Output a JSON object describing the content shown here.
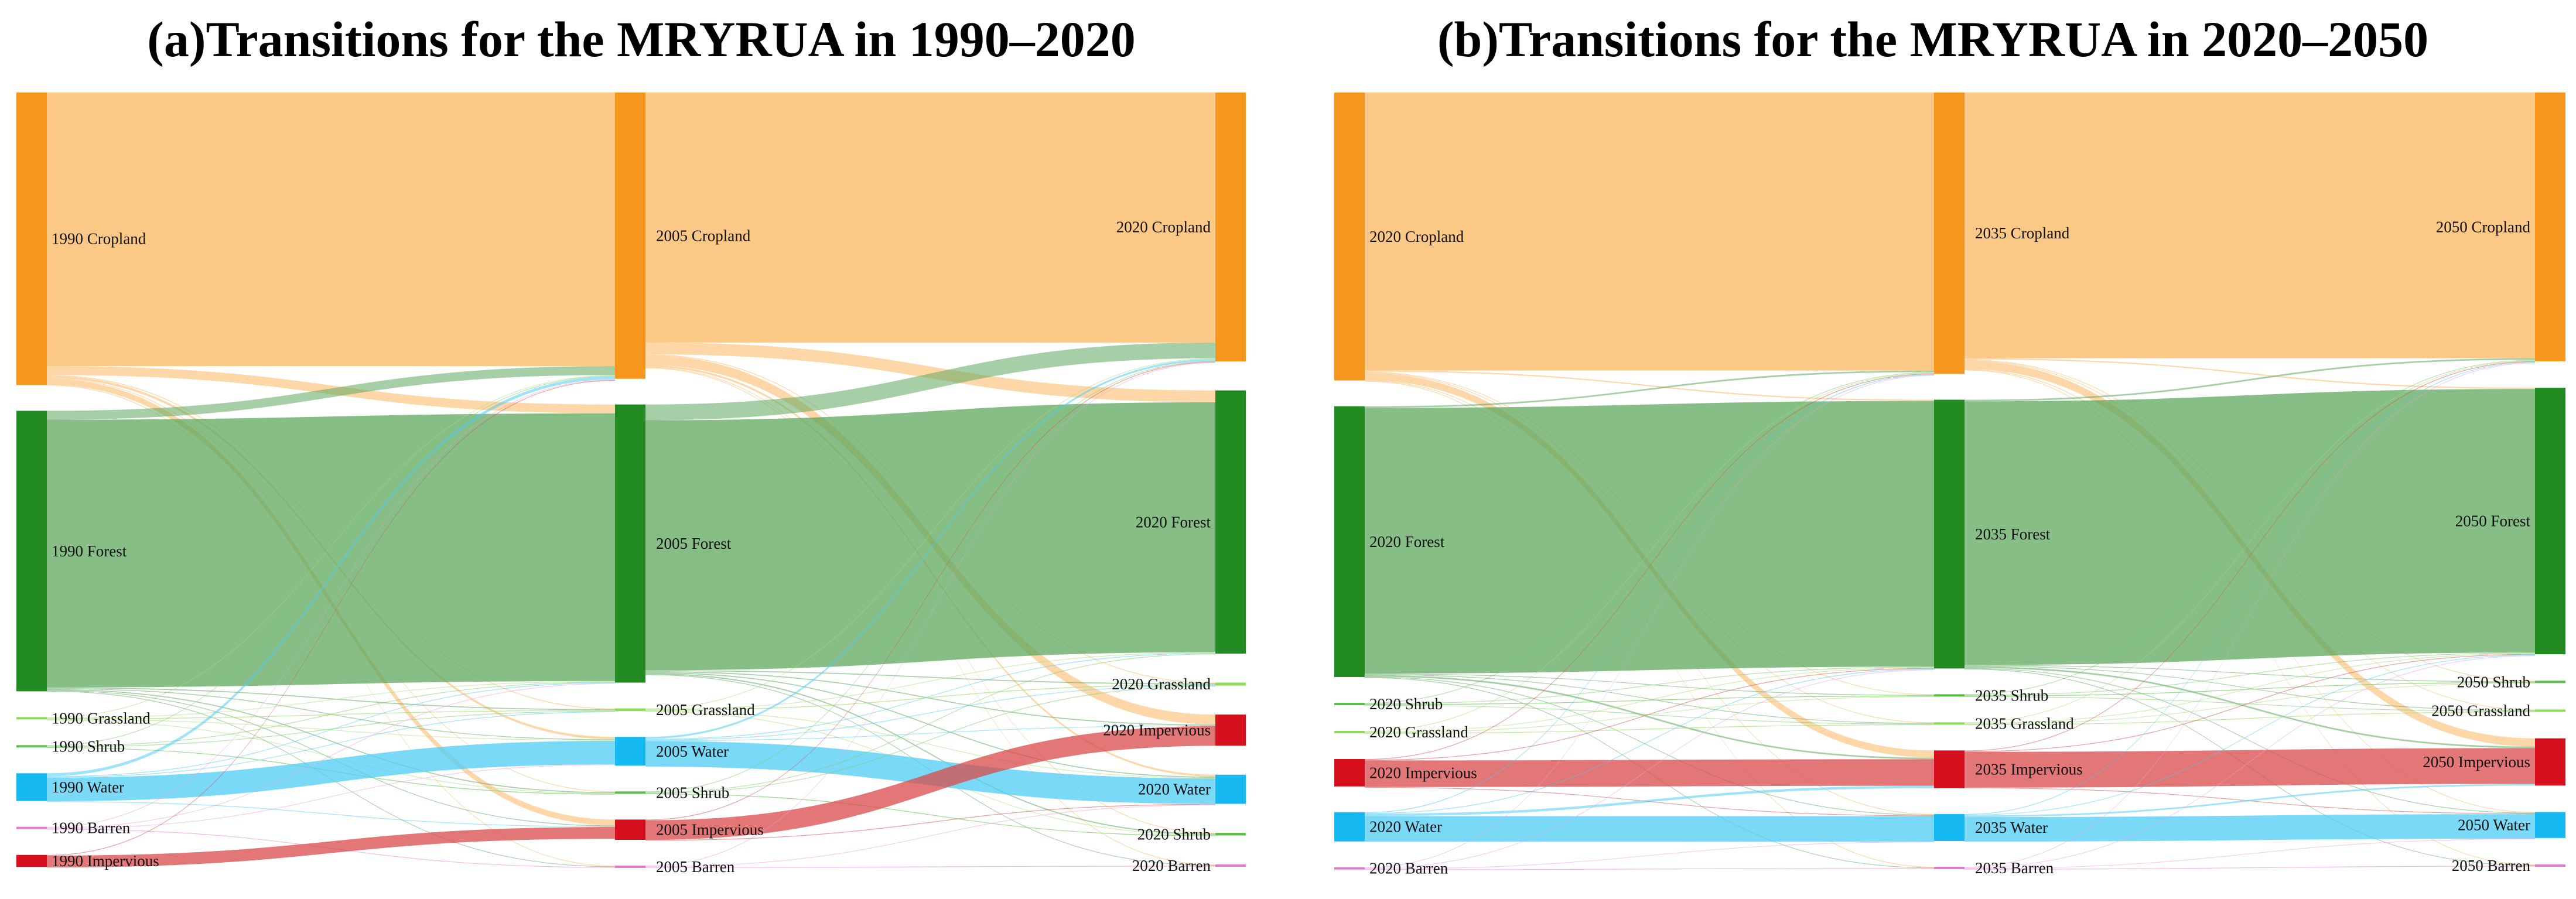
{
  "panels": [
    {
      "title": "(a)Transitions for the MRYRUA in 1990–2020",
      "years": [
        "1990",
        "2005",
        "2020"
      ],
      "columns": [
        [
          {
            "label": "1990 Cropland",
            "class": "Cropland"
          },
          {
            "label": "1990 Forest",
            "class": "Forest"
          },
          {
            "label": "1990 Grassland",
            "class": "Grassland"
          },
          {
            "label": "1990 Shrub",
            "class": "Shrub"
          },
          {
            "label": "1990 Water",
            "class": "Water"
          },
          {
            "label": "1990 Barren",
            "class": "Barren"
          },
          {
            "label": "1990 Impervious",
            "class": "Impervious"
          }
        ],
        [
          {
            "label": "2005 Cropland",
            "class": "Cropland"
          },
          {
            "label": "2005 Forest",
            "class": "Forest"
          },
          {
            "label": "2005 Grassland",
            "class": "Grassland"
          },
          {
            "label": "2005 Water",
            "class": "Water"
          },
          {
            "label": "2005 Shrub",
            "class": "Shrub"
          },
          {
            "label": "2005 Impervious",
            "class": "Impervious"
          },
          {
            "label": "2005 Barren",
            "class": "Barren"
          }
        ],
        [
          {
            "label": "2020 Cropland",
            "class": "Cropland"
          },
          {
            "label": "2020 Forest",
            "class": "Forest"
          },
          {
            "label": "2020 Grassland",
            "class": "Grassland"
          },
          {
            "label": "2020 Impervious",
            "class": "Impervious"
          },
          {
            "label": "2020 Water",
            "class": "Water"
          },
          {
            "label": "2020 Shrub",
            "class": "Shrub"
          },
          {
            "label": "2020 Barren",
            "class": "Barren"
          }
        ]
      ],
      "flows": [
        [
          [
            "Cropland",
            "Cropland",
            1390
          ],
          [
            "Cropland",
            "Forest",
            45
          ],
          [
            "Cropland",
            "Impervious",
            30
          ],
          [
            "Cropland",
            "Water",
            12
          ],
          [
            "Cropland",
            "Grassland",
            4
          ],
          [
            "Cropland",
            "Shrub",
            3
          ],
          [
            "Cropland",
            "Barren",
            2
          ],
          [
            "Forest",
            "Forest",
            1360
          ],
          [
            "Forest",
            "Cropland",
            45
          ],
          [
            "Forest",
            "Grassland",
            5
          ],
          [
            "Forest",
            "Shrub",
            5
          ],
          [
            "Forest",
            "Water",
            4
          ],
          [
            "Forest",
            "Impervious",
            4
          ],
          [
            "Forest",
            "Barren",
            2
          ],
          [
            "Grassland",
            "Grassland",
            3
          ],
          [
            "Grassland",
            "Forest",
            2
          ],
          [
            "Grassland",
            "Cropland",
            1
          ],
          [
            "Grassland",
            "Shrub",
            1
          ],
          [
            "Grassland",
            "Water",
            1
          ],
          [
            "Shrub",
            "Shrub",
            3
          ],
          [
            "Shrub",
            "Forest",
            2
          ],
          [
            "Shrub",
            "Grassland",
            1
          ],
          [
            "Shrub",
            "Cropland",
            1
          ],
          [
            "Water",
            "Water",
            120
          ],
          [
            "Water",
            "Cropland",
            15
          ],
          [
            "Water",
            "Forest",
            3
          ],
          [
            "Water",
            "Impervious",
            2
          ],
          [
            "Water",
            "Grassland",
            1
          ],
          [
            "Barren",
            "Barren",
            2
          ],
          [
            "Barren",
            "Water",
            1
          ],
          [
            "Barren",
            "Forest",
            1
          ],
          [
            "Barren",
            "Cropland",
            1
          ],
          [
            "Impervious",
            "Impervious",
            60
          ],
          [
            "Impervious",
            "Cropland",
            1
          ]
        ],
        [
          [
            "Cropland",
            "Cropland",
            1270
          ],
          [
            "Cropland",
            "Forest",
            60
          ],
          [
            "Cropland",
            "Impervious",
            50
          ],
          [
            "Cropland",
            "Water",
            10
          ],
          [
            "Cropland",
            "Grassland",
            4
          ],
          [
            "Cropland",
            "Shrub",
            3
          ],
          [
            "Cropland",
            "Barren",
            2
          ],
          [
            "Forest",
            "Forest",
            1270
          ],
          [
            "Forest",
            "Cropland",
            80
          ],
          [
            "Forest",
            "Grassland",
            5
          ],
          [
            "Forest",
            "Shrub",
            6
          ],
          [
            "Forest",
            "Water",
            5
          ],
          [
            "Forest",
            "Impervious",
            5
          ],
          [
            "Forest",
            "Barren",
            2
          ],
          [
            "Grassland",
            "Grassland",
            4
          ],
          [
            "Grassland",
            "Forest",
            3
          ],
          [
            "Grassland",
            "Cropland",
            2
          ],
          [
            "Grassland",
            "Shrub",
            1
          ],
          [
            "Grassland",
            "Water",
            1
          ],
          [
            "Water",
            "Water",
            130
          ],
          [
            "Water",
            "Cropland",
            10
          ],
          [
            "Water",
            "Forest",
            2
          ],
          [
            "Water",
            "Impervious",
            3
          ],
          [
            "Water",
            "Grassland",
            1
          ],
          [
            "Shrub",
            "Shrub",
            3
          ],
          [
            "Shrub",
            "Forest",
            2
          ],
          [
            "Shrub",
            "Grassland",
            1
          ],
          [
            "Shrub",
            "Cropland",
            1
          ],
          [
            "Impervious",
            "Impervious",
            100
          ],
          [
            "Impervious",
            "Cropland",
            2
          ],
          [
            "Impervious",
            "Water",
            1
          ],
          [
            "Barren",
            "Barren",
            2
          ],
          [
            "Barren",
            "Water",
            1
          ],
          [
            "Barren",
            "Cropland",
            1
          ]
        ]
      ]
    },
    {
      "title": "(b)Transitions for the MRYRUA in 2020–2050",
      "years": [
        "2020",
        "2035",
        "2050"
      ],
      "columns": [
        [
          {
            "label": "2020 Cropland",
            "class": "Cropland"
          },
          {
            "label": "2020 Forest",
            "class": "Forest"
          },
          {
            "label": "2020 Shrub",
            "class": "Shrub"
          },
          {
            "label": "2020 Grassland",
            "class": "Grassland"
          },
          {
            "label": "2020 Impervious",
            "class": "Impervious"
          },
          {
            "label": "2020 Water",
            "class": "Water"
          },
          {
            "label": "2020 Barren",
            "class": "Barren"
          }
        ],
        [
          {
            "label": "2035 Cropland",
            "class": "Cropland"
          },
          {
            "label": "2035 Forest",
            "class": "Forest"
          },
          {
            "label": "2035 Shrub",
            "class": "Shrub"
          },
          {
            "label": "2035 Grassland",
            "class": "Grassland"
          },
          {
            "label": "2035 Impervious",
            "class": "Impervious"
          },
          {
            "label": "2035 Water",
            "class": "Water"
          },
          {
            "label": "2035 Barren",
            "class": "Barren"
          }
        ],
        [
          {
            "label": "2050 Cropland",
            "class": "Cropland"
          },
          {
            "label": "2050 Forest",
            "class": "Forest"
          },
          {
            "label": "2050 Shrub",
            "class": "Shrub"
          },
          {
            "label": "2050 Grassland",
            "class": "Grassland"
          },
          {
            "label": "2050 Impervious",
            "class": "Impervious"
          },
          {
            "label": "2050 Water",
            "class": "Water"
          },
          {
            "label": "2050 Barren",
            "class": "Barren"
          }
        ]
      ],
      "flows": [
        [
          [
            "Cropland",
            "Cropland",
            1360
          ],
          [
            "Cropland",
            "Impervious",
            35
          ],
          [
            "Cropland",
            "Forest",
            6
          ],
          [
            "Cropland",
            "Water",
            3
          ],
          [
            "Cropland",
            "Shrub",
            2
          ],
          [
            "Cropland",
            "Grassland",
            2
          ],
          [
            "Cropland",
            "Barren",
            1
          ],
          [
            "Forest",
            "Forest",
            1300
          ],
          [
            "Forest",
            "Cropland",
            8
          ],
          [
            "Forest",
            "Impervious",
            8
          ],
          [
            "Forest",
            "Shrub",
            3
          ],
          [
            "Forest",
            "Grassland",
            3
          ],
          [
            "Forest",
            "Water",
            2
          ],
          [
            "Forest",
            "Barren",
            1
          ],
          [
            "Shrub",
            "Shrub",
            3
          ],
          [
            "Shrub",
            "Forest",
            2
          ],
          [
            "Shrub",
            "Grassland",
            1
          ],
          [
            "Shrub",
            "Cropland",
            1
          ],
          [
            "Grassland",
            "Grassland",
            3
          ],
          [
            "Grassland",
            "Forest",
            2
          ],
          [
            "Grassland",
            "Cropland",
            1
          ],
          [
            "Grassland",
            "Shrub",
            1
          ],
          [
            "Impervious",
            "Impervious",
            130
          ],
          [
            "Impervious",
            "Cropland",
            2
          ],
          [
            "Impervious",
            "Water",
            1
          ],
          [
            "Impervious",
            "Forest",
            1
          ],
          [
            "Water",
            "Water",
            125
          ],
          [
            "Water",
            "Impervious",
            12
          ],
          [
            "Water",
            "Cropland",
            4
          ],
          [
            "Water",
            "Forest",
            2
          ],
          [
            "Barren",
            "Barren",
            2
          ],
          [
            "Barren",
            "Forest",
            1
          ],
          [
            "Barren",
            "Water",
            1
          ],
          [
            "Barren",
            "Cropland",
            1
          ]
        ],
        [
          [
            "Cropland",
            "Cropland",
            1300
          ],
          [
            "Cropland",
            "Impervious",
            40
          ],
          [
            "Cropland",
            "Forest",
            6
          ],
          [
            "Cropland",
            "Water",
            3
          ],
          [
            "Cropland",
            "Shrub",
            2
          ],
          [
            "Cropland",
            "Grassland",
            2
          ],
          [
            "Cropland",
            "Barren",
            1
          ],
          [
            "Forest",
            "Forest",
            1290
          ],
          [
            "Forest",
            "Cropland",
            8
          ],
          [
            "Forest",
            "Impervious",
            8
          ],
          [
            "Forest",
            "Shrub",
            3
          ],
          [
            "Forest",
            "Grassland",
            3
          ],
          [
            "Forest",
            "Water",
            2
          ],
          [
            "Forest",
            "Barren",
            1
          ],
          [
            "Shrub",
            "Shrub",
            3
          ],
          [
            "Shrub",
            "Forest",
            2
          ],
          [
            "Shrub",
            "Grassland",
            1
          ],
          [
            "Shrub",
            "Cropland",
            1
          ],
          [
            "Grassland",
            "Grassland",
            3
          ],
          [
            "Grassland",
            "Forest",
            2
          ],
          [
            "Grassland",
            "Cropland",
            1
          ],
          [
            "Grassland",
            "Shrub",
            1
          ],
          [
            "Impervious",
            "Impervious",
            175
          ],
          [
            "Impervious",
            "Cropland",
            2
          ],
          [
            "Impervious",
            "Water",
            1
          ],
          [
            "Impervious",
            "Forest",
            1
          ],
          [
            "Water",
            "Water",
            120
          ],
          [
            "Water",
            "Impervious",
            8
          ],
          [
            "Water",
            "Cropland",
            2
          ],
          [
            "Water",
            "Forest",
            2
          ],
          [
            "Barren",
            "Barren",
            2
          ],
          [
            "Barren",
            "Forest",
            1
          ],
          [
            "Barren",
            "Water",
            1
          ],
          [
            "Barren",
            "Cropland",
            1
          ]
        ]
      ]
    }
  ],
  "class_colors": {
    "Cropland": "#f7961c",
    "Forest": "#228b22",
    "Grassland": "#8edc5a",
    "Shrub": "#5cbf4a",
    "Water": "#17b9f2",
    "Barren": "#e27ad2",
    "Impervious": "#d60f1c"
  },
  "link_colors": {
    "Cropland": "#fbb65e",
    "Forest": "#5ea85e",
    "Grassland": "#a8e07a",
    "Shrub": "#7acb6a",
    "Water": "#4fccf6",
    "Barren": "#eea2e2",
    "Impervious": "#d94a4a"
  }
}
